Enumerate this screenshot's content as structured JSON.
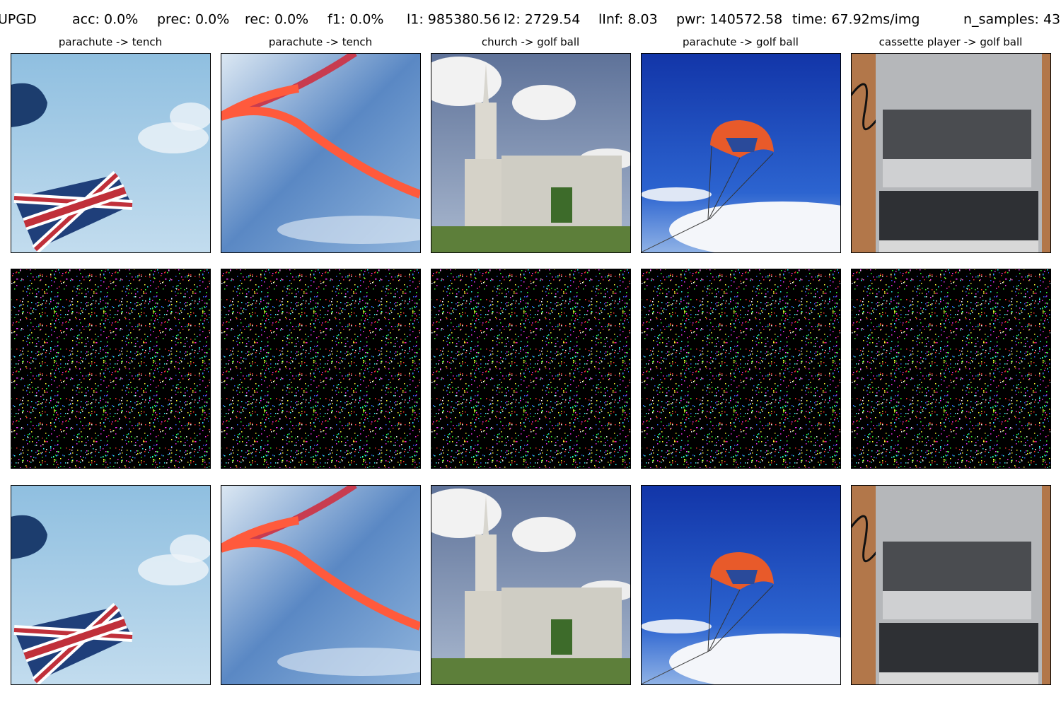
{
  "header": {
    "items": [
      "UPGD",
      "acc: 0.0%",
      "prec: 0.0%",
      "rec: 0.0%",
      "f1: 0.0%",
      "l1: 985380.56",
      "l2: 2729.54",
      "lInf: 8.03",
      "pwr: 140572.58",
      "time: 67.92ms/img",
      "n_samples: 43"
    ]
  },
  "panels": {
    "titles": [
      "parachute -> tench",
      "parachute -> tench",
      "church -> golf ball",
      "parachute -> golf ball",
      "cassette player -> golf ball"
    ]
  }
}
